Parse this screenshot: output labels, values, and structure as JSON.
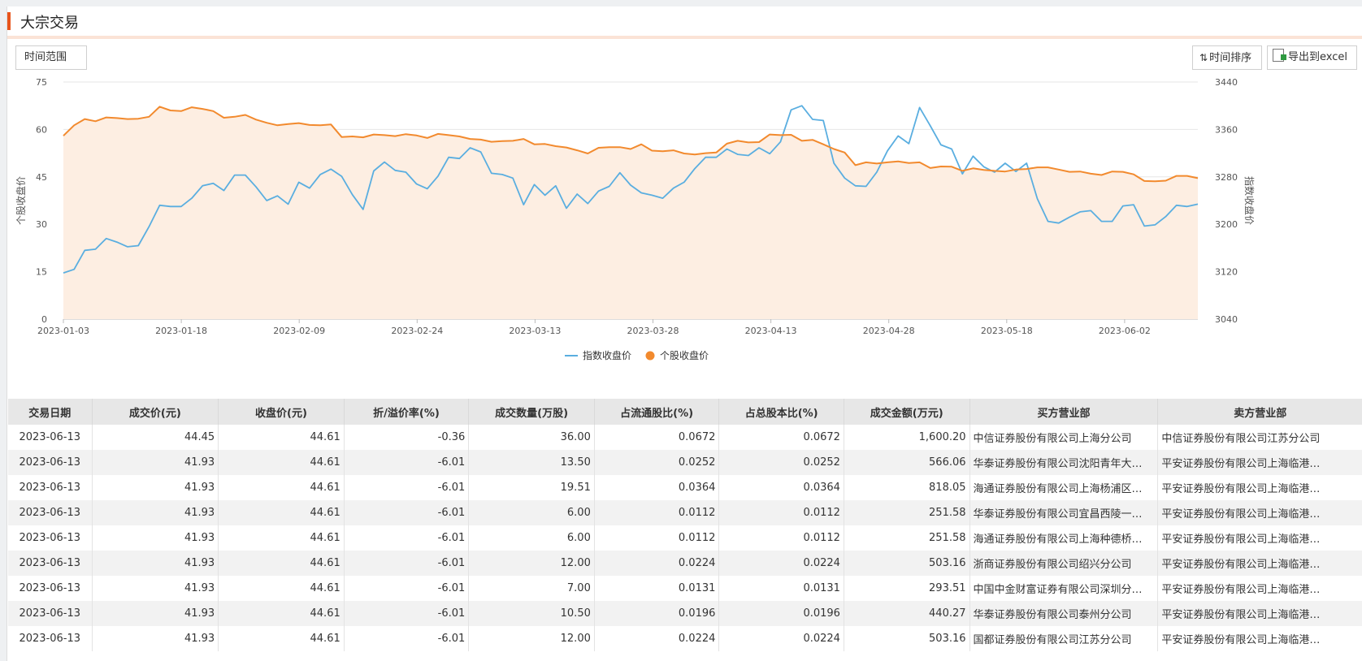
{
  "header": {
    "title": "大宗交易"
  },
  "toolbar": {
    "range_label": "时间范围",
    "sort_label": "时间排序",
    "export_label": "导出到excel"
  },
  "chart_data": {
    "type": "line",
    "left_axis": {
      "label": "个股收盘价",
      "min": 0,
      "max": 75,
      "ticks": [
        0,
        15,
        30,
        45,
        60,
        75
      ]
    },
    "right_axis": {
      "label": "指数收盘价",
      "min": 3040,
      "max": 3440,
      "ticks": [
        3040,
        3120,
        3200,
        3280,
        3360,
        3440
      ]
    },
    "x_ticks": [
      "2023-01-03",
      "2023-01-18",
      "2023-02-09",
      "2023-02-24",
      "2023-03-13",
      "2023-03-28",
      "2023-04-13",
      "2023-04-28",
      "2023-05-18",
      "2023-06-02"
    ],
    "grid": "horizontal",
    "legend_position": "bottom",
    "series": [
      {
        "name": "指数收盘价",
        "axis": "right",
        "color": "#5aaee0",
        "fill": false,
        "values": [
          3118,
          3124,
          3156,
          3158,
          3176,
          3170,
          3162,
          3164,
          3196,
          3232,
          3230,
          3230,
          3244,
          3265,
          3269,
          3257,
          3283,
          3283,
          3263,
          3240,
          3248,
          3234,
          3271,
          3261,
          3284,
          3293,
          3281,
          3250,
          3225,
          3290,
          3305,
          3291,
          3288,
          3268,
          3260,
          3281,
          3313,
          3311,
          3329,
          3322,
          3286,
          3284,
          3278,
          3233,
          3267,
          3249,
          3265,
          3227,
          3251,
          3235,
          3256,
          3264,
          3287,
          3266,
          3253,
          3249,
          3244,
          3261,
          3271,
          3294,
          3313,
          3313,
          3327,
          3318,
          3316,
          3329,
          3319,
          3339,
          3393,
          3400,
          3377,
          3375,
          3303,
          3278,
          3265,
          3264,
          3288,
          3324,
          3349,
          3336,
          3397,
          3366,
          3334,
          3327,
          3285,
          3315,
          3297,
          3288,
          3303,
          3289,
          3303,
          3243,
          3205,
          3202,
          3212,
          3221,
          3223,
          3205,
          3205,
          3231,
          3233,
          3197,
          3199,
          3213,
          3232,
          3230,
          3234
        ]
      },
      {
        "name": "个股收盘价",
        "axis": "left",
        "color": "#f28a2e",
        "fill": true,
        "values": [
          58.0,
          61.3,
          63.3,
          62.6,
          63.8,
          63.6,
          63.3,
          63.4,
          64.0,
          67.2,
          66.0,
          65.8,
          67.0,
          66.5,
          65.8,
          63.7,
          64.0,
          64.6,
          63.1,
          62.1,
          61.3,
          61.7,
          62.0,
          61.4,
          61.3,
          61.6,
          57.6,
          57.8,
          57.5,
          58.4,
          58.2,
          57.9,
          58.5,
          58.1,
          57.3,
          58.6,
          58.2,
          57.8,
          57.0,
          56.8,
          56.1,
          56.3,
          56.4,
          57.0,
          55.3,
          55.4,
          54.7,
          54.3,
          53.4,
          52.4,
          54.2,
          54.4,
          54.4,
          53.8,
          55.3,
          53.3,
          53.1,
          53.4,
          52.4,
          52.1,
          52.5,
          52.7,
          55.5,
          56.4,
          55.9,
          56.0,
          58.4,
          58.2,
          58.3,
          56.4,
          56.7,
          55.3,
          53.8,
          52.7,
          48.7,
          49.6,
          49.2,
          49.6,
          49.9,
          49.4,
          49.6,
          47.8,
          48.3,
          48.2,
          46.9,
          47.7,
          47.2,
          46.9,
          46.7,
          47.3,
          47.5,
          48.0,
          48.0,
          47.3,
          46.6,
          46.7,
          46.0,
          45.6,
          46.7,
          46.6,
          45.8,
          43.7,
          43.6,
          43.8,
          45.3,
          45.3,
          44.6
        ]
      }
    ]
  },
  "table": {
    "columns": [
      "交易日期",
      "成交价(元)",
      "收盘价(元)",
      "折/溢价率(%)",
      "成交数量(万股)",
      "占流通股比(%)",
      "占总股本比(%)",
      "成交金额(万元)",
      "买方营业部",
      "卖方营业部"
    ],
    "rows": [
      [
        "2023-06-13",
        "44.45",
        "44.61",
        "-0.36",
        "36.00",
        "0.0672",
        "0.0672",
        "1,600.20",
        "中信证券股份有限公司上海分公司",
        "中信证券股份有限公司江苏分公司"
      ],
      [
        "2023-06-13",
        "41.93",
        "44.61",
        "-6.01",
        "13.50",
        "0.0252",
        "0.0252",
        "566.06",
        "华泰证券股份有限公司沈阳青年大…",
        "平安证券股份有限公司上海临港…"
      ],
      [
        "2023-06-13",
        "41.93",
        "44.61",
        "-6.01",
        "19.51",
        "0.0364",
        "0.0364",
        "818.05",
        "海通证券股份有限公司上海杨浦区…",
        "平安证券股份有限公司上海临港…"
      ],
      [
        "2023-06-13",
        "41.93",
        "44.61",
        "-6.01",
        "6.00",
        "0.0112",
        "0.0112",
        "251.58",
        "华泰证券股份有限公司宜昌西陵一…",
        "平安证券股份有限公司上海临港…"
      ],
      [
        "2023-06-13",
        "41.93",
        "44.61",
        "-6.01",
        "6.00",
        "0.0112",
        "0.0112",
        "251.58",
        "海通证券股份有限公司上海种德桥…",
        "平安证券股份有限公司上海临港…"
      ],
      [
        "2023-06-13",
        "41.93",
        "44.61",
        "-6.01",
        "12.00",
        "0.0224",
        "0.0224",
        "503.16",
        "浙商证券股份有限公司绍兴分公司",
        "平安证券股份有限公司上海临港…"
      ],
      [
        "2023-06-13",
        "41.93",
        "44.61",
        "-6.01",
        "7.00",
        "0.0131",
        "0.0131",
        "293.51",
        "中国中金财富证券有限公司深圳分…",
        "平安证券股份有限公司上海临港…"
      ],
      [
        "2023-06-13",
        "41.93",
        "44.61",
        "-6.01",
        "10.50",
        "0.0196",
        "0.0196",
        "440.27",
        "华泰证券股份有限公司泰州分公司",
        "平安证券股份有限公司上海临港…"
      ],
      [
        "2023-06-13",
        "41.93",
        "44.61",
        "-6.01",
        "12.00",
        "0.0224",
        "0.0224",
        "503.16",
        "国都证券股份有限公司江苏分公司",
        "平安证券股份有限公司上海临港…"
      ]
    ]
  }
}
